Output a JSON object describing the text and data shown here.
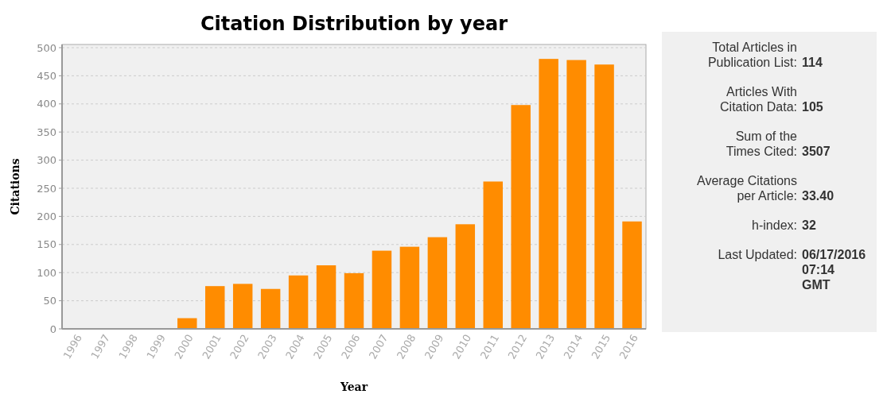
{
  "chart_data": [
    {
      "type": "bar",
      "title": "Citation Distribution by year",
      "xlabel": "Year",
      "ylabel": "Citations",
      "categories": [
        "1996",
        "1997",
        "1998",
        "1999",
        "2000",
        "2001",
        "2002",
        "2003",
        "2004",
        "2005",
        "2006",
        "2007",
        "2008",
        "2009",
        "2010",
        "2011",
        "2012",
        "2013",
        "2014",
        "2015",
        "2016"
      ],
      "values": [
        0,
        0,
        0,
        0,
        19,
        76,
        80,
        71,
        95,
        113,
        99,
        139,
        146,
        163,
        186,
        262,
        398,
        480,
        478,
        470,
        191
      ],
      "color": "#ff8c00",
      "ylim": [
        0,
        500
      ],
      "yticks": [
        0,
        50,
        100,
        150,
        200,
        250,
        300,
        350,
        400,
        450,
        500
      ],
      "grid": "y"
    },
    {
      "type": "other",
      "annotations": [
        "Total Articles in\nPublication List:",
        "114",
        "Articles With\nCitation Data:",
        "105",
        "Sum of the\nTimes Cited:",
        "3507",
        "Average Citations\nper Article:",
        "33.40",
        "h-index:",
        "32",
        "Last Updated:",
        "06/17/2016\n07:14\nGMT"
      ]
    }
  ]
}
